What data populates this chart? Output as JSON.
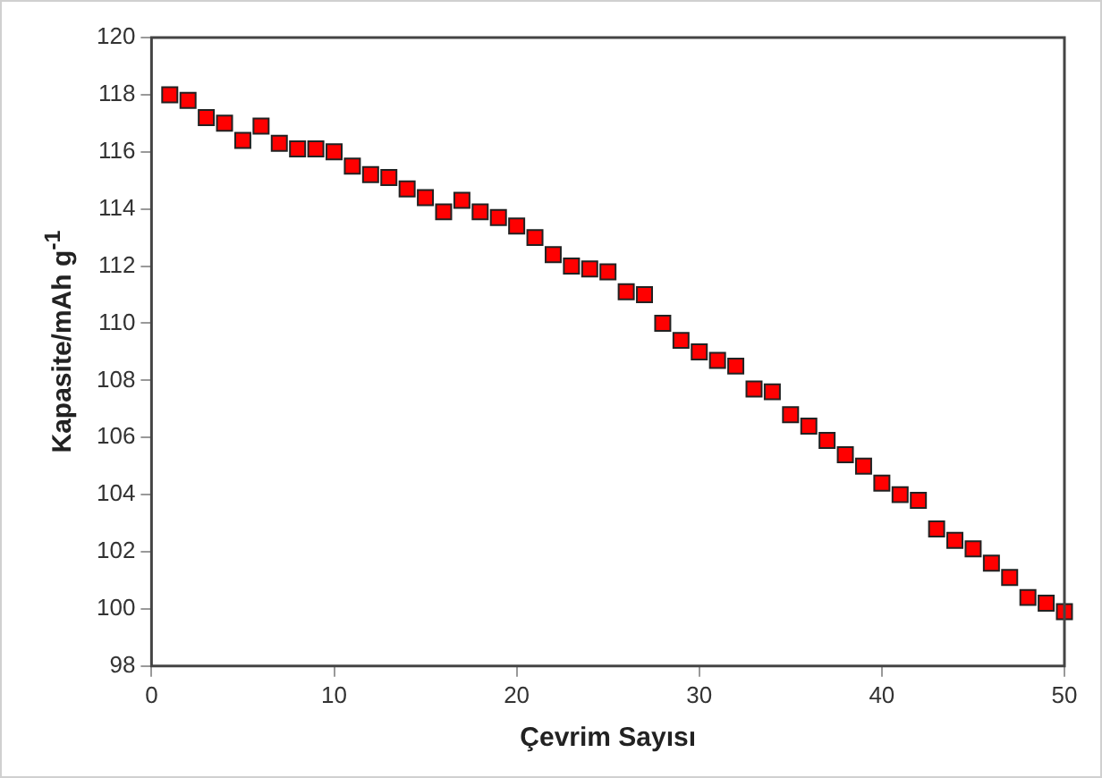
{
  "chart_data": {
    "type": "scatter",
    "xlabel": "Çevrim Sayısı",
    "ylabel": "Kapasite/mAh g$^{-1}$",
    "x": [
      1,
      2,
      3,
      4,
      5,
      6,
      7,
      8,
      9,
      10,
      11,
      12,
      13,
      14,
      15,
      16,
      17,
      18,
      19,
      20,
      21,
      22,
      23,
      24,
      25,
      26,
      27,
      28,
      29,
      30,
      31,
      32,
      33,
      34,
      35,
      36,
      37,
      38,
      39,
      40,
      41,
      42,
      43,
      44,
      45,
      46,
      47,
      48,
      49,
      50
    ],
    "series": [
      {
        "color": "#ff0000",
        "values": [
          118.0,
          117.8,
          117.2,
          117.0,
          116.4,
          116.9,
          116.3,
          116.1,
          116.1,
          116.0,
          115.5,
          115.2,
          115.1,
          114.7,
          114.4,
          113.9,
          114.3,
          113.9,
          113.7,
          113.4,
          113.0,
          112.4,
          112.0,
          111.9,
          111.8,
          111.1,
          111.0,
          110.0,
          109.4,
          109.0,
          108.7,
          108.5,
          107.7,
          107.6,
          106.8,
          106.4,
          105.9,
          105.4,
          105.0,
          104.4,
          104.0,
          103.8,
          102.8,
          102.4,
          102.1,
          101.6,
          101.1,
          100.4,
          100.2,
          99.9
        ]
      }
    ],
    "xlim": [
      0,
      50
    ],
    "xticks": [
      0,
      10,
      20,
      30,
      40,
      50
    ],
    "ylim": [
      98,
      120
    ],
    "yticks": [
      98,
      100,
      102,
      104,
      106,
      108,
      110,
      112,
      114,
      116,
      118,
      120
    ],
    "marker": "square",
    "grid": false,
    "legend": false
  }
}
